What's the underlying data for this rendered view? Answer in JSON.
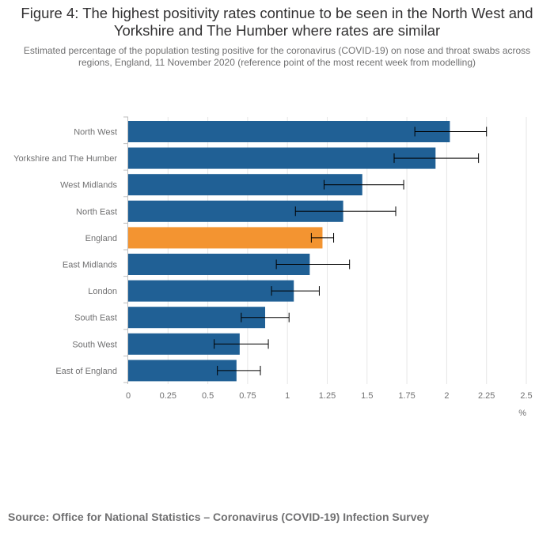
{
  "title": "Figure 4: The highest positivity rates continue to be seen in the North West and Yorkshire and The Humber where rates are similar",
  "subtitle": "Estimated percentage of the population testing positive for the coronavirus (COVID-19) on nose and throat swabs across regions, England, 11 November 2020 (reference point of the most recent week from modelling)",
  "source": "Source: Office for National Statistics – Coronavirus (COVID-19) Infection Survey",
  "colors": {
    "bar": "#206095",
    "highlight": "#f39431",
    "grid": "#e6e6e6",
    "axis_text": "#707071",
    "error_bar": "#000000"
  },
  "chart_data": {
    "type": "bar",
    "orientation": "horizontal",
    "categories": [
      "North West",
      "Yorkshire and The Humber",
      "West Midlands",
      "North East",
      "England",
      "East Midlands",
      "London",
      "South East",
      "South West",
      "East of England"
    ],
    "values": [
      2.02,
      1.93,
      1.47,
      1.35,
      1.22,
      1.14,
      1.04,
      0.86,
      0.7,
      0.68
    ],
    "lower": [
      1.8,
      1.67,
      1.23,
      1.05,
      1.15,
      0.93,
      0.9,
      0.71,
      0.54,
      0.56
    ],
    "upper": [
      2.25,
      2.2,
      1.73,
      1.68,
      1.29,
      1.39,
      1.2,
      1.01,
      0.88,
      0.83
    ],
    "highlight_category": "England",
    "xlim": [
      0,
      2.5
    ],
    "xticks": [
      0,
      0.25,
      0.5,
      0.75,
      1,
      1.25,
      1.5,
      1.75,
      2,
      2.25,
      2.5
    ],
    "xtick_labels": [
      "0",
      "0.25",
      "0.5",
      "0.75",
      "1",
      "1.25",
      "1.5",
      "1.75",
      "2",
      "2.25",
      "2.5"
    ],
    "xlabel": "%",
    "grid": true
  }
}
